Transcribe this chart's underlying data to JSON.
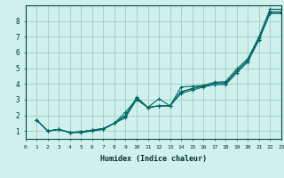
{
  "xlabel": "Humidex (Indice chaleur)",
  "bg_color": "#cff0eb",
  "grid_color": "#a0ccc8",
  "line_color": "#006868",
  "xlim": [
    0,
    23
  ],
  "ylim": [
    0.5,
    9.0
  ],
  "yticks": [
    1,
    2,
    3,
    4,
    5,
    6,
    7,
    8
  ],
  "xticks": [
    0,
    1,
    2,
    3,
    4,
    5,
    6,
    7,
    8,
    9,
    10,
    11,
    12,
    13,
    14,
    15,
    16,
    17,
    18,
    19,
    20,
    21,
    22,
    23
  ],
  "series": [
    {
      "x": [
        1,
        2,
        3,
        4,
        5,
        6,
        7,
        8,
        9,
        10,
        11,
        12,
        13,
        14,
        15,
        16,
        17,
        18,
        19,
        20,
        21,
        22,
        23
      ],
      "y": [
        1.7,
        1.0,
        1.1,
        0.9,
        0.95,
        1.05,
        1.15,
        1.5,
        1.85,
        3.15,
        2.5,
        3.05,
        2.6,
        3.8,
        3.85,
        3.9,
        4.1,
        4.15,
        4.95,
        5.6,
        7.0,
        8.75,
        8.75
      ]
    },
    {
      "x": [
        1,
        2,
        3,
        4,
        5,
        6,
        7,
        8,
        9,
        10,
        11,
        12,
        13,
        14,
        15,
        16,
        17,
        18,
        19,
        20,
        21,
        22,
        23
      ],
      "y": [
        1.7,
        1.0,
        1.1,
        0.9,
        0.95,
        1.05,
        1.15,
        1.5,
        2.2,
        3.05,
        2.5,
        2.6,
        2.6,
        3.5,
        3.7,
        3.9,
        4.05,
        4.05,
        4.8,
        5.5,
        6.8,
        8.6,
        8.6
      ]
    },
    {
      "x": [
        1,
        2,
        3,
        4,
        5,
        6,
        7,
        8,
        9,
        10,
        11,
        12,
        13,
        14,
        15,
        16,
        17,
        18,
        19,
        20,
        21,
        22,
        23
      ],
      "y": [
        1.7,
        1.0,
        1.1,
        0.9,
        0.95,
        1.05,
        1.15,
        1.5,
        2.0,
        3.1,
        2.5,
        2.6,
        2.6,
        3.5,
        3.7,
        3.85,
        4.05,
        4.05,
        4.8,
        5.5,
        6.9,
        8.5,
        8.5
      ]
    },
    {
      "x": [
        1,
        2,
        3,
        4,
        5,
        6,
        7,
        8,
        9,
        10,
        11,
        12,
        13,
        14,
        15,
        16,
        17,
        18,
        19,
        20,
        21,
        22,
        23
      ],
      "y": [
        1.7,
        1.0,
        1.1,
        0.9,
        0.9,
        1.0,
        1.1,
        1.5,
        1.9,
        3.0,
        2.5,
        2.6,
        2.6,
        3.4,
        3.6,
        3.8,
        3.95,
        3.95,
        4.7,
        5.4,
        6.8,
        8.5,
        8.5
      ]
    }
  ]
}
